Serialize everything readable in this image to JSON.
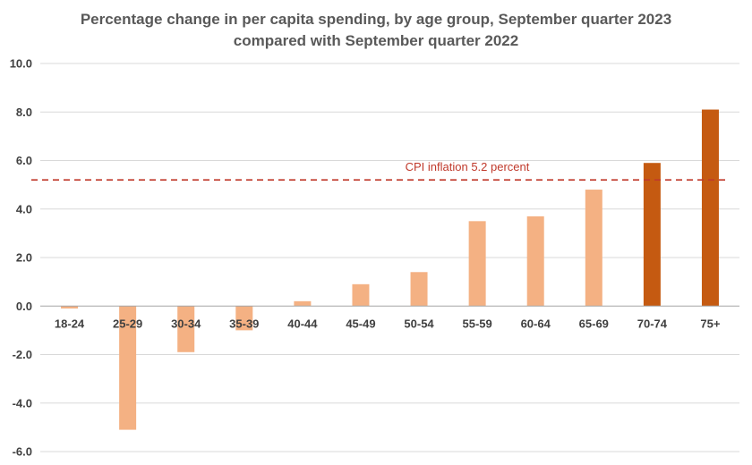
{
  "chart_data": {
    "type": "bar",
    "title_lines": [
      "Percentage change in per capita spending, by age group, September quarter 2023",
      "compared with September quarter 2022"
    ],
    "categories": [
      "18-24",
      "25-29",
      "30-34",
      "35-39",
      "40-44",
      "45-49",
      "50-54",
      "55-59",
      "60-64",
      "65-69",
      "70-74",
      "75+"
    ],
    "values": [
      -0.1,
      -5.1,
      -1.9,
      -1.0,
      0.2,
      0.9,
      1.4,
      3.5,
      3.7,
      4.8,
      5.9,
      8.1
    ],
    "highlighted": [
      false,
      false,
      false,
      false,
      false,
      false,
      false,
      false,
      false,
      false,
      true,
      true
    ],
    "ylim": [
      -6.0,
      10.0
    ],
    "y_ticks": [
      10.0,
      8.0,
      6.0,
      4.0,
      2.0,
      0.0,
      -2.0,
      -4.0,
      -6.0
    ],
    "y_tick_labels": [
      "10.0",
      "8.0",
      "6.0",
      "4.0",
      "2.0",
      "0.0",
      "-2.0",
      "-4.0",
      "-6.0"
    ],
    "grid": true,
    "reference_line": {
      "value": 5.2,
      "label": "CPI inflation 5.2 percent",
      "style": "dashed"
    },
    "colors": {
      "bar": "#F4B183",
      "bar_highlight": "#C55A11",
      "reference": "#C0392B",
      "grid": "#D9D9D9",
      "axis": "#A6A6A6",
      "title": "#595959"
    }
  }
}
